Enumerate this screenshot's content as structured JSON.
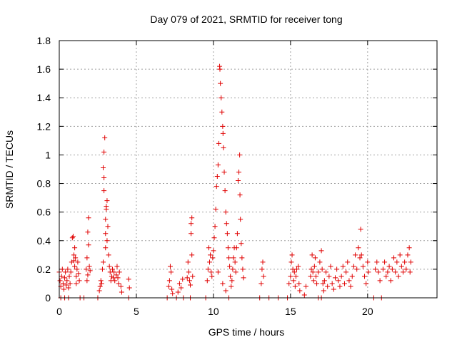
{
  "chart_data": {
    "type": "scatter",
    "title": "Day 079 of 2021, SRMTID for receiver tong",
    "xlabel": "GPS time / hours",
    "ylabel": "SRMTID / TECUs",
    "xlim": [
      0,
      24.5
    ],
    "ylim": [
      0,
      1.8
    ],
    "xticks": [
      0,
      5,
      10,
      15,
      20
    ],
    "xtick_labels": [
      "0",
      "5",
      "10",
      "15",
      "20"
    ],
    "yticks": [
      0,
      0.2,
      0.4,
      0.6,
      0.8,
      1,
      1.2,
      1.4,
      1.6,
      1.8
    ],
    "ytick_labels": [
      "0",
      "0.2",
      "0.4",
      "0.6",
      "0.8",
      "1",
      "1.2",
      "1.4",
      "1.6",
      "1.8"
    ],
    "grid": true,
    "marker": "plus",
    "color": "#e00000",
    "series": [
      {
        "name": "SRMTID",
        "points": [
          [
            0.0,
            0.18
          ],
          [
            0.05,
            0.12
          ],
          [
            0.1,
            0.08
          ],
          [
            0.15,
            0.15
          ],
          [
            0.2,
            0.2
          ],
          [
            0.25,
            0.1
          ],
          [
            0.3,
            0.06
          ],
          [
            0.35,
            0.14
          ],
          [
            0.4,
            0.18
          ],
          [
            0.45,
            0.09
          ],
          [
            0.5,
            0.12
          ],
          [
            0.55,
            0.2
          ],
          [
            0.6,
            0.07
          ],
          [
            0.65,
            0.15
          ],
          [
            0.7,
            0.1
          ],
          [
            0.75,
            0.18
          ],
          [
            0.8,
            0.25
          ],
          [
            0.85,
            0.42
          ],
          [
            0.9,
            0.43
          ],
          [
            0.95,
            0.3
          ],
          [
            1.0,
            0.22
          ],
          [
            1.05,
            0.28
          ],
          [
            1.1,
            0.15
          ],
          [
            1.15,
            0.2
          ],
          [
            1.2,
            0.25
          ],
          [
            1.25,
            0.17
          ],
          [
            1.3,
            0.12
          ],
          [
            1.0,
            0.35
          ],
          [
            0.95,
            0.26
          ],
          [
            1.1,
            0.1
          ],
          [
            0.1,
            0.0
          ],
          [
            0.35,
            0.0
          ],
          [
            0.6,
            0.0
          ],
          [
            1.35,
            0.0
          ],
          [
            1.6,
            0.0
          ],
          [
            1.75,
            0.2
          ],
          [
            1.8,
            0.28
          ],
          [
            1.85,
            0.16
          ],
          [
            1.9,
            0.56
          ],
          [
            1.85,
            0.46
          ],
          [
            1.95,
            0.22
          ],
          [
            1.8,
            0.12
          ],
          [
            2.0,
            0.19
          ],
          [
            1.9,
            0.37
          ],
          [
            2.5,
            0.0
          ],
          [
            2.6,
            0.05
          ],
          [
            2.65,
            0.08
          ],
          [
            2.7,
            0.12
          ],
          [
            2.75,
            0.1
          ],
          [
            2.8,
            0.2
          ],
          [
            2.85,
            0.25
          ],
          [
            2.9,
            0.75
          ],
          [
            2.85,
            0.91
          ],
          [
            2.9,
            1.02
          ],
          [
            2.95,
            1.12
          ],
          [
            2.9,
            0.84
          ],
          [
            3.0,
            0.55
          ],
          [
            3.05,
            0.64
          ],
          [
            3.1,
            0.68
          ],
          [
            3.05,
            0.62
          ],
          [
            3.0,
            0.45
          ],
          [
            3.1,
            0.4
          ],
          [
            3.15,
            0.5
          ],
          [
            3.0,
            0.35
          ],
          [
            3.2,
            0.3
          ],
          [
            3.25,
            0.22
          ],
          [
            3.3,
            0.18
          ],
          [
            3.35,
            0.12
          ],
          [
            3.4,
            0.15
          ],
          [
            3.45,
            0.2
          ],
          [
            3.5,
            0.14
          ],
          [
            3.55,
            0.18
          ],
          [
            3.6,
            0.12
          ],
          [
            3.7,
            0.16
          ],
          [
            3.75,
            0.22
          ],
          [
            3.8,
            0.14
          ],
          [
            3.85,
            0.1
          ],
          [
            3.9,
            0.18
          ],
          [
            4.0,
            0.08
          ],
          [
            4.05,
            0.04
          ],
          [
            4.5,
            0.13
          ],
          [
            4.55,
            0.07
          ],
          [
            4.5,
            0.0
          ],
          [
            7.0,
            0.0
          ],
          [
            7.1,
            0.08
          ],
          [
            7.15,
            0.12
          ],
          [
            7.2,
            0.22
          ],
          [
            7.25,
            0.18
          ],
          [
            7.3,
            0.06
          ],
          [
            7.35,
            0.03
          ],
          [
            7.6,
            0.0
          ],
          [
            7.7,
            0.04
          ],
          [
            7.8,
            0.1
          ],
          [
            7.9,
            0.07
          ],
          [
            8.0,
            0.13
          ],
          [
            8.05,
            0.0
          ],
          [
            8.3,
            0.14
          ],
          [
            8.35,
            0.25
          ],
          [
            8.4,
            0.18
          ],
          [
            8.45,
            0.12
          ],
          [
            8.5,
            0.09
          ],
          [
            8.55,
            0.45
          ],
          [
            8.6,
            0.56
          ],
          [
            8.55,
            0.52
          ],
          [
            8.6,
            0.3
          ],
          [
            8.65,
            0.15
          ],
          [
            8.5,
            0.0
          ],
          [
            9.5,
            0.0
          ],
          [
            9.6,
            0.12
          ],
          [
            9.65,
            0.2
          ],
          [
            9.7,
            0.35
          ],
          [
            9.75,
            0.25
          ],
          [
            9.8,
            0.3
          ],
          [
            9.85,
            0.18
          ],
          [
            9.9,
            0.15
          ],
          [
            9.95,
            0.28
          ],
          [
            10.0,
            0.33
          ],
          [
            10.05,
            0.42
          ],
          [
            10.1,
            0.5
          ],
          [
            10.15,
            0.62
          ],
          [
            10.2,
            0.78
          ],
          [
            10.25,
            0.85
          ],
          [
            10.3,
            0.93
          ],
          [
            10.35,
            1.08
          ],
          [
            10.4,
            1.62
          ],
          [
            10.42,
            1.6
          ],
          [
            10.45,
            1.5
          ],
          [
            10.5,
            1.4
          ],
          [
            10.55,
            1.3
          ],
          [
            10.6,
            1.2
          ],
          [
            10.62,
            1.15
          ],
          [
            10.65,
            1.05
          ],
          [
            10.7,
            0.88
          ],
          [
            10.75,
            0.75
          ],
          [
            10.8,
            0.6
          ],
          [
            10.85,
            0.52
          ],
          [
            10.9,
            0.45
          ],
          [
            10.95,
            0.35
          ],
          [
            11.0,
            0.28
          ],
          [
            11.05,
            0.22
          ],
          [
            11.1,
            0.15
          ],
          [
            11.15,
            0.08
          ],
          [
            11.2,
            0.12
          ],
          [
            11.25,
            0.2
          ],
          [
            11.3,
            0.28
          ],
          [
            11.35,
            0.35
          ],
          [
            11.4,
            0.25
          ],
          [
            11.45,
            0.18
          ],
          [
            11.5,
            0.35
          ],
          [
            11.55,
            0.45
          ],
          [
            11.6,
            0.82
          ],
          [
            11.65,
            0.88
          ],
          [
            11.7,
            1.0
          ],
          [
            11.72,
            0.72
          ],
          [
            11.75,
            0.55
          ],
          [
            11.8,
            0.38
          ],
          [
            11.85,
            0.28
          ],
          [
            11.9,
            0.2
          ],
          [
            11.95,
            0.14
          ],
          [
            10.6,
            0.1
          ],
          [
            10.8,
            0.05
          ],
          [
            10.3,
            0.18
          ],
          [
            11.0,
            0.0
          ],
          [
            13.0,
            0.0
          ],
          [
            13.1,
            0.1
          ],
          [
            13.15,
            0.2
          ],
          [
            13.2,
            0.25
          ],
          [
            13.25,
            0.15
          ],
          [
            13.6,
            0.0
          ],
          [
            14.2,
            0.0
          ],
          [
            14.8,
            0.0
          ],
          [
            14.9,
            0.1
          ],
          [
            15.0,
            0.15
          ],
          [
            15.05,
            0.25
          ],
          [
            15.1,
            0.3
          ],
          [
            15.15,
            0.2
          ],
          [
            15.2,
            0.12
          ],
          [
            15.25,
            0.18
          ],
          [
            15.3,
            0.08
          ],
          [
            15.35,
            0.15
          ],
          [
            15.4,
            0.2
          ],
          [
            15.5,
            0.22
          ],
          [
            15.55,
            0.1
          ],
          [
            15.6,
            0.05
          ],
          [
            15.9,
            0.02
          ],
          [
            16.0,
            0.08
          ],
          [
            16.3,
            0.15
          ],
          [
            16.35,
            0.2
          ],
          [
            16.4,
            0.3
          ],
          [
            16.45,
            0.18
          ],
          [
            16.5,
            0.12
          ],
          [
            16.55,
            0.22
          ],
          [
            16.6,
            0.28
          ],
          [
            16.65,
            0.15
          ],
          [
            16.7,
            0.1
          ],
          [
            16.8,
            0.18
          ],
          [
            16.9,
            0.25
          ],
          [
            17.0,
            0.33
          ],
          [
            17.05,
            0.2
          ],
          [
            17.1,
            0.1
          ],
          [
            17.15,
            0.05
          ],
          [
            17.2,
            0.12
          ],
          [
            17.3,
            0.18
          ],
          [
            17.4,
            0.08
          ],
          [
            17.5,
            0.15
          ],
          [
            17.6,
            0.22
          ],
          [
            17.7,
            0.1
          ],
          [
            17.8,
            0.06
          ],
          [
            17.9,
            0.14
          ],
          [
            18.0,
            0.2
          ],
          [
            18.1,
            0.12
          ],
          [
            18.2,
            0.08
          ],
          [
            18.3,
            0.15
          ],
          [
            18.4,
            0.22
          ],
          [
            18.5,
            0.1
          ],
          [
            18.6,
            0.18
          ],
          [
            18.7,
            0.25
          ],
          [
            18.8,
            0.12
          ],
          [
            18.9,
            0.08
          ],
          [
            19.0,
            0.15
          ],
          [
            19.1,
            0.22
          ],
          [
            19.2,
            0.3
          ],
          [
            19.3,
            0.2
          ],
          [
            19.4,
            0.35
          ],
          [
            19.5,
            0.28
          ],
          [
            19.55,
            0.48
          ],
          [
            19.6,
            0.3
          ],
          [
            19.7,
            0.22
          ],
          [
            19.8,
            0.15
          ],
          [
            19.9,
            0.1
          ],
          [
            20.0,
            0.25
          ],
          [
            20.05,
            0.18
          ],
          [
            16.8,
            0.0
          ],
          [
            17.0,
            0.0
          ],
          [
            20.4,
            0.0
          ],
          [
            20.5,
            0.2
          ],
          [
            20.6,
            0.25
          ],
          [
            20.7,
            0.18
          ],
          [
            20.8,
            0.12
          ],
          [
            20.9,
            0.0
          ],
          [
            21.0,
            0.2
          ],
          [
            21.1,
            0.25
          ],
          [
            21.2,
            0.15
          ],
          [
            21.3,
            0.18
          ],
          [
            21.4,
            0.22
          ],
          [
            21.5,
            0.12
          ],
          [
            21.6,
            0.2
          ],
          [
            21.7,
            0.28
          ],
          [
            21.8,
            0.18
          ],
          [
            21.9,
            0.25
          ],
          [
            22.0,
            0.15
          ],
          [
            22.1,
            0.3
          ],
          [
            22.2,
            0.22
          ],
          [
            22.3,
            0.18
          ],
          [
            22.4,
            0.25
          ],
          [
            22.5,
            0.2
          ],
          [
            22.6,
            0.3
          ],
          [
            22.7,
            0.35
          ],
          [
            22.75,
            0.18
          ],
          [
            22.8,
            0.25
          ]
        ]
      }
    ]
  }
}
